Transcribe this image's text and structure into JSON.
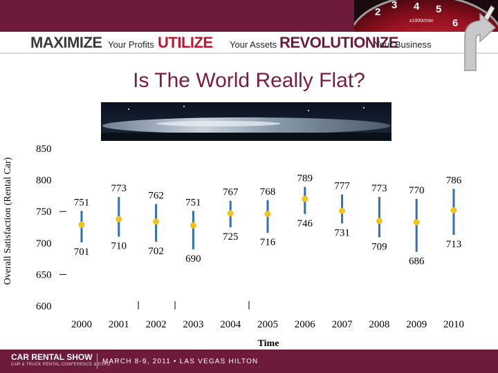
{
  "banner": {
    "word1": "MAXIMIZE",
    "phrase1": "Your Profits",
    "word2": "UTILIZE",
    "phrase2": "Your Assets",
    "word3": "REVOLUTIONIZE",
    "phrase3": "Your Business",
    "gauge_numbers": [
      "2",
      "3",
      "4",
      "5",
      "6"
    ],
    "gauge_unit": "x1000r/min",
    "colors": {
      "bar": "#6e1a3a",
      "red_word": "#c4122f",
      "dark_word": "#3a3a3a"
    }
  },
  "title": "Is The World Really Flat?",
  "chart_data": {
    "type": "error-bar",
    "xlabel": "Time",
    "ylabel": "Overall Satisfaction (Rental Car)",
    "ylim": [
      600,
      850
    ],
    "yticks": [
      600,
      650,
      700,
      750,
      800,
      850
    ],
    "categories": [
      "2000",
      "2001",
      "2002",
      "2003",
      "2004",
      "2005",
      "2006",
      "2007",
      "2008",
      "2009",
      "2010"
    ],
    "upper": [
      751,
      773,
      762,
      751,
      767,
      768,
      789,
      777,
      773,
      770,
      786
    ],
    "lower": [
      701,
      710,
      702,
      690,
      725,
      716,
      746,
      731,
      709,
      686,
      713
    ],
    "mean": [
      729,
      738,
      734,
      728,
      747,
      746,
      770,
      751,
      735,
      733,
      752
    ],
    "upper_labels": [
      "751",
      "773",
      "762",
      "751",
      "767",
      "768",
      "789",
      "777",
      "773",
      "770",
      "786"
    ],
    "lower_labels": [
      "701",
      "710",
      "702",
      "690",
      "725",
      "716",
      "746",
      "731",
      "709",
      "686",
      "713"
    ],
    "grid": false,
    "colors": {
      "bar": "#2e6fb5",
      "mean": "#f2c31a"
    }
  },
  "footer": {
    "logo": "CAR RENTAL SHOW",
    "logo_sub": "CAR & TRUCK RENTAL CONFERENCE & EXPO",
    "date": "MARCH 8-9, 2011 • LAS VEGAS HILTON"
  }
}
